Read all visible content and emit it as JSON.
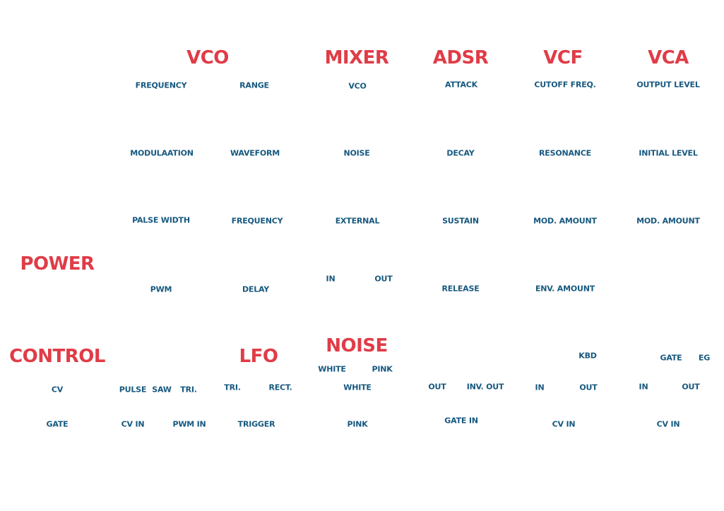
{
  "colors": {
    "heading": "#e03c47",
    "label": "#16587f",
    "background": "#ffffff"
  },
  "headings": {
    "vco": "VCO",
    "mixer": "MIXER",
    "adsr": "ADSR",
    "vcf": "VCF",
    "vca": "VCA",
    "power": "POWER",
    "control": "CONTROL",
    "lfo": "LFO",
    "noise": "NOISE"
  },
  "vco": {
    "frequency": "FREQUENCY",
    "range": "RANGE",
    "modulation": "MODULAATION",
    "waveform": "WAVEFORM",
    "pulse_width": "PALSE WIDTH",
    "frequency_2": "FREQUENCY",
    "pwm": "PWM",
    "delay": "DELAY",
    "pulse": "PULSE",
    "saw": "SAW",
    "tri": "TRI.",
    "cv_in": "CV IN",
    "pwm_in": "PWM IN"
  },
  "mixer": {
    "vco": "VCO",
    "noise": "NOISE",
    "external": "EXTERNAL",
    "in": "IN",
    "out": "OUT"
  },
  "adsr": {
    "attack": "ATTACK",
    "decay": "DECAY",
    "sustain": "SUSTAIN",
    "release": "RELEASE",
    "out": "OUT",
    "inv_out": "INV. OUT",
    "gate_in": "GATE IN"
  },
  "vcf": {
    "cutoff": "CUTOFF FREQ.",
    "resonance": "RESONANCE",
    "mod_amount": "MOD. AMOUNT",
    "env_amount": "ENV. AMOUNT",
    "kbd": "KBD",
    "in": "IN",
    "out": "OUT",
    "cv_in": "CV IN"
  },
  "vca": {
    "output_level": "OUTPUT LEVEL",
    "initial_level": "INITIAL LEVEL",
    "mod_amount": "MOD. AMOUNT",
    "gate": "GATE",
    "eg": "EG",
    "in": "IN",
    "out": "OUT",
    "cv_in": "CV IN"
  },
  "control": {
    "cv": "CV",
    "gate": "GATE"
  },
  "lfo": {
    "tri": "TRI.",
    "rect": "RECT.",
    "trigger": "TRIGGER"
  },
  "noise": {
    "white_switch": "WHITE",
    "pink_switch": "PINK",
    "white": "WHITE",
    "pink": "PINK"
  }
}
